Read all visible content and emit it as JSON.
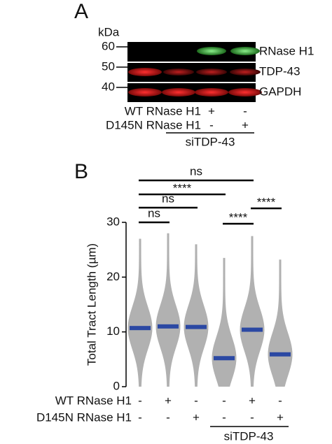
{
  "panel_a": {
    "label": "A",
    "unit": "kDa",
    "markers": [
      "60",
      "50",
      "40"
    ],
    "bands": [
      "RNase H1",
      "TDP-43",
      "GAPDH"
    ],
    "rows": [
      {
        "label": "WT RNase H1",
        "signs": [
          "+",
          "-"
        ]
      },
      {
        "label": "D145N RNase H1",
        "signs": [
          "-",
          "+"
        ]
      }
    ],
    "group_label": "siTDP-43"
  },
  "chart_data": {
    "type": "dot",
    "panel_label": "B",
    "y_label": "Total Tract Length (µm)",
    "values": [
      10.7,
      11.0,
      10.9,
      5.2,
      10.4,
      5.9
    ],
    "color": "#2b48a3",
    "point_color": "#a8a8a8",
    "ranges": [
      [
        0,
        27
      ],
      [
        0,
        28
      ],
      [
        0,
        26
      ],
      [
        0,
        23.5
      ],
      [
        0,
        27.5
      ],
      [
        0,
        23.2
      ]
    ],
    "ylim": [
      0,
      30
    ],
    "yticks": [
      0,
      10,
      20,
      30
    ],
    "rows": [
      {
        "label": "WT RNase H1",
        "signs": [
          "-",
          "+",
          "-",
          "-",
          "+",
          "-"
        ]
      },
      {
        "label": "D145N RNase H1",
        "signs": [
          "-",
          "-",
          "+",
          "-",
          "-",
          "+"
        ]
      }
    ],
    "group_label": "siTDP-43",
    "comparisons": [
      {
        "groups": [
          0,
          1
        ],
        "label": "ns"
      },
      {
        "groups": [
          0,
          2
        ],
        "label": "ns"
      },
      {
        "groups": [
          0,
          3
        ],
        "label": "****"
      },
      {
        "groups": [
          0,
          4
        ],
        "label": "ns"
      },
      {
        "groups": [
          3,
          4
        ],
        "label": "****"
      },
      {
        "groups": [
          4,
          5
        ],
        "label": "****"
      }
    ]
  }
}
